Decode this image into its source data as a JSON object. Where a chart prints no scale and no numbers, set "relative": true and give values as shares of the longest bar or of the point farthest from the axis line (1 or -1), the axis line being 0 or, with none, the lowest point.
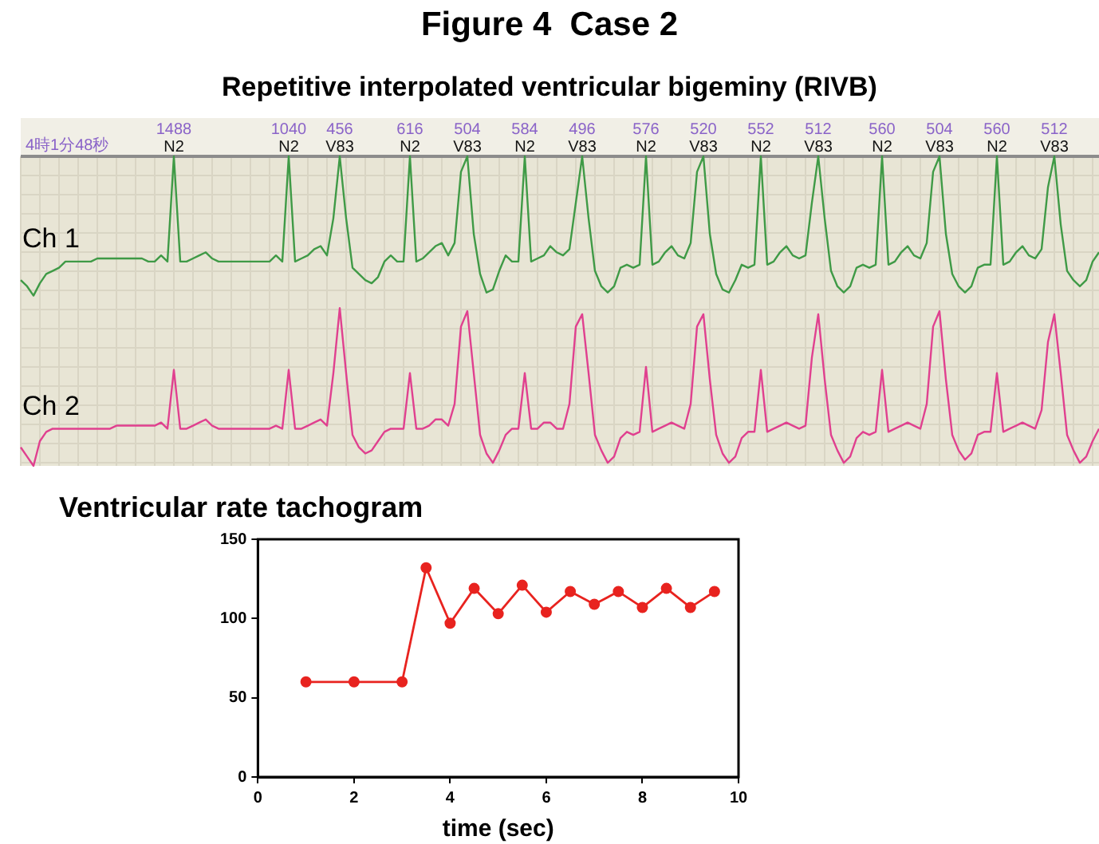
{
  "chart_data": [
    {
      "type": "line",
      "title": "Figure 4  Case 2",
      "subtitle": "Repetitive interpolated ventricular bigeminy (RIVB)",
      "relative": true,
      "grid": true,
      "annotations": [
        "4時1分48秒"
      ],
      "categories": [
        null,
        null,
        null,
        null,
        null,
        null,
        null,
        null,
        null,
        null,
        null,
        null,
        null,
        null,
        null,
        null,
        null,
        null,
        null,
        null,
        null,
        null,
        null,
        null,
        "1488\nN2",
        null,
        null,
        null,
        null,
        null,
        null,
        null,
        null,
        null,
        null,
        null,
        null,
        null,
        null,
        null,
        null,
        null,
        "1040\nN2",
        null,
        null,
        null,
        null,
        null,
        null,
        null,
        "456\nV83",
        null,
        null,
        null,
        null,
        null,
        null,
        null,
        null,
        null,
        null,
        "616\nN2",
        null,
        null,
        null,
        null,
        null,
        null,
        null,
        null,
        "504\nV83",
        null,
        null,
        null,
        null,
        null,
        null,
        null,
        null,
        "584\nN2",
        null,
        null,
        null,
        null,
        null,
        null,
        null,
        null,
        "496\nV83",
        null,
        null,
        null,
        null,
        null,
        null,
        null,
        null,
        null,
        "576\nN2",
        null,
        null,
        null,
        null,
        null,
        null,
        null,
        null,
        "520\nV83",
        null,
        null,
        null,
        null,
        null,
        null,
        null,
        null,
        "552\nN2",
        null,
        null,
        null,
        null,
        null,
        null,
        null,
        null,
        "512\nV83",
        null,
        null,
        null,
        null,
        null,
        null,
        null,
        null,
        null,
        "560\nN2",
        null,
        null,
        null,
        null,
        null,
        null,
        null,
        null,
        "504\nV83",
        null,
        null,
        null,
        null,
        null,
        null,
        null,
        null,
        "560\nN2",
        null,
        null,
        null,
        null,
        null,
        null,
        null,
        null,
        "512\nV83",
        null,
        null,
        null,
        null,
        null,
        null,
        null
      ],
      "series": [
        {
          "name": "Ch 1",
          "color": "#3f9a46",
          "values": [
            0.6,
            0.58,
            0.55,
            0.59,
            0.62,
            0.63,
            0.64,
            0.66,
            0.66,
            0.66,
            0.66,
            0.66,
            0.67,
            0.67,
            0.67,
            0.67,
            0.67,
            0.67,
            0.67,
            0.67,
            0.66,
            0.66,
            0.68,
            0.66,
            1.0,
            0.66,
            0.66,
            0.67,
            0.68,
            0.69,
            0.67,
            0.66,
            0.66,
            0.66,
            0.66,
            0.66,
            0.66,
            0.66,
            0.66,
            0.66,
            0.68,
            0.66,
            1.0,
            0.66,
            0.67,
            0.68,
            0.7,
            0.71,
            0.68,
            0.8,
            1.0,
            0.8,
            0.64,
            0.62,
            0.6,
            0.59,
            0.61,
            0.66,
            0.68,
            0.66,
            0.66,
            1.0,
            0.66,
            0.67,
            0.69,
            0.71,
            0.72,
            0.68,
            0.72,
            0.95,
            1.0,
            0.75,
            0.62,
            0.56,
            0.57,
            0.63,
            0.68,
            0.66,
            0.66,
            1.0,
            0.66,
            0.67,
            0.68,
            0.71,
            0.69,
            0.68,
            0.7,
            0.85,
            1.0,
            0.8,
            0.63,
            0.58,
            0.56,
            0.58,
            0.64,
            0.65,
            0.64,
            0.65,
            1.0,
            0.65,
            0.66,
            0.69,
            0.71,
            0.68,
            0.67,
            0.72,
            0.95,
            1.0,
            0.75,
            0.62,
            0.57,
            0.56,
            0.6,
            0.65,
            0.64,
            0.65,
            1.0,
            0.65,
            0.66,
            0.69,
            0.71,
            0.68,
            0.67,
            0.68,
            0.85,
            1.0,
            0.8,
            0.63,
            0.58,
            0.56,
            0.58,
            0.64,
            0.65,
            0.64,
            0.65,
            1.0,
            0.65,
            0.66,
            0.69,
            0.71,
            0.68,
            0.67,
            0.72,
            0.95,
            1.0,
            0.75,
            0.62,
            0.58,
            0.56,
            0.58,
            0.64,
            0.65,
            0.65,
            1.0,
            0.65,
            0.66,
            0.69,
            0.71,
            0.68,
            0.67,
            0.7,
            0.9,
            1.0,
            0.78,
            0.63,
            0.6,
            0.58,
            0.6,
            0.66,
            0.69
          ]
        },
        {
          "name": "Ch 2",
          "color": "#e0408f",
          "values": [
            0.06,
            0.03,
            0.0,
            0.08,
            0.11,
            0.12,
            0.12,
            0.12,
            0.12,
            0.12,
            0.12,
            0.12,
            0.12,
            0.12,
            0.12,
            0.13,
            0.13,
            0.13,
            0.13,
            0.13,
            0.13,
            0.13,
            0.14,
            0.12,
            0.31,
            0.12,
            0.12,
            0.13,
            0.14,
            0.15,
            0.13,
            0.12,
            0.12,
            0.12,
            0.12,
            0.12,
            0.12,
            0.12,
            0.12,
            0.12,
            0.13,
            0.12,
            0.31,
            0.12,
            0.12,
            0.13,
            0.14,
            0.15,
            0.13,
            0.3,
            0.51,
            0.3,
            0.1,
            0.06,
            0.04,
            0.05,
            0.08,
            0.11,
            0.12,
            0.12,
            0.12,
            0.3,
            0.12,
            0.12,
            0.13,
            0.15,
            0.15,
            0.13,
            0.2,
            0.45,
            0.5,
            0.3,
            0.1,
            0.04,
            0.01,
            0.05,
            0.1,
            0.12,
            0.12,
            0.3,
            0.12,
            0.12,
            0.14,
            0.14,
            0.12,
            0.12,
            0.2,
            0.45,
            0.49,
            0.3,
            0.1,
            0.05,
            0.01,
            0.03,
            0.09,
            0.11,
            0.1,
            0.11,
            0.32,
            0.11,
            0.12,
            0.13,
            0.14,
            0.13,
            0.12,
            0.2,
            0.45,
            0.49,
            0.28,
            0.1,
            0.04,
            0.01,
            0.03,
            0.09,
            0.11,
            0.11,
            0.31,
            0.11,
            0.12,
            0.13,
            0.14,
            0.13,
            0.12,
            0.13,
            0.35,
            0.49,
            0.28,
            0.1,
            0.05,
            0.01,
            0.03,
            0.09,
            0.11,
            0.1,
            0.11,
            0.31,
            0.11,
            0.12,
            0.13,
            0.14,
            0.13,
            0.12,
            0.2,
            0.45,
            0.5,
            0.28,
            0.1,
            0.05,
            0.02,
            0.04,
            0.1,
            0.11,
            0.11,
            0.3,
            0.11,
            0.12,
            0.13,
            0.14,
            0.13,
            0.12,
            0.18,
            0.4,
            0.49,
            0.3,
            0.1,
            0.05,
            0.01,
            0.03,
            0.08,
            0.12
          ]
        }
      ]
    },
    {
      "type": "line",
      "title": "Ventricular rate tachogram",
      "xlabel": "time (sec)",
      "color": "#e8231f",
      "marker": "circle",
      "grid": false,
      "x": [
        1,
        2,
        3,
        3.5,
        4,
        4.5,
        5,
        5.5,
        6,
        6.5,
        7,
        7.5,
        8,
        8.5,
        9,
        9.5
      ],
      "values": [
        60,
        60,
        60,
        132,
        97,
        119,
        103,
        121,
        104,
        117,
        109,
        117,
        107,
        119,
        107,
        117
      ],
      "xlim": [
        0,
        10
      ],
      "xticks": [
        0,
        2,
        4,
        6,
        8,
        10
      ],
      "ylim": [
        0,
        150
      ],
      "yticks": [
        0,
        50,
        100,
        150
      ]
    }
  ]
}
